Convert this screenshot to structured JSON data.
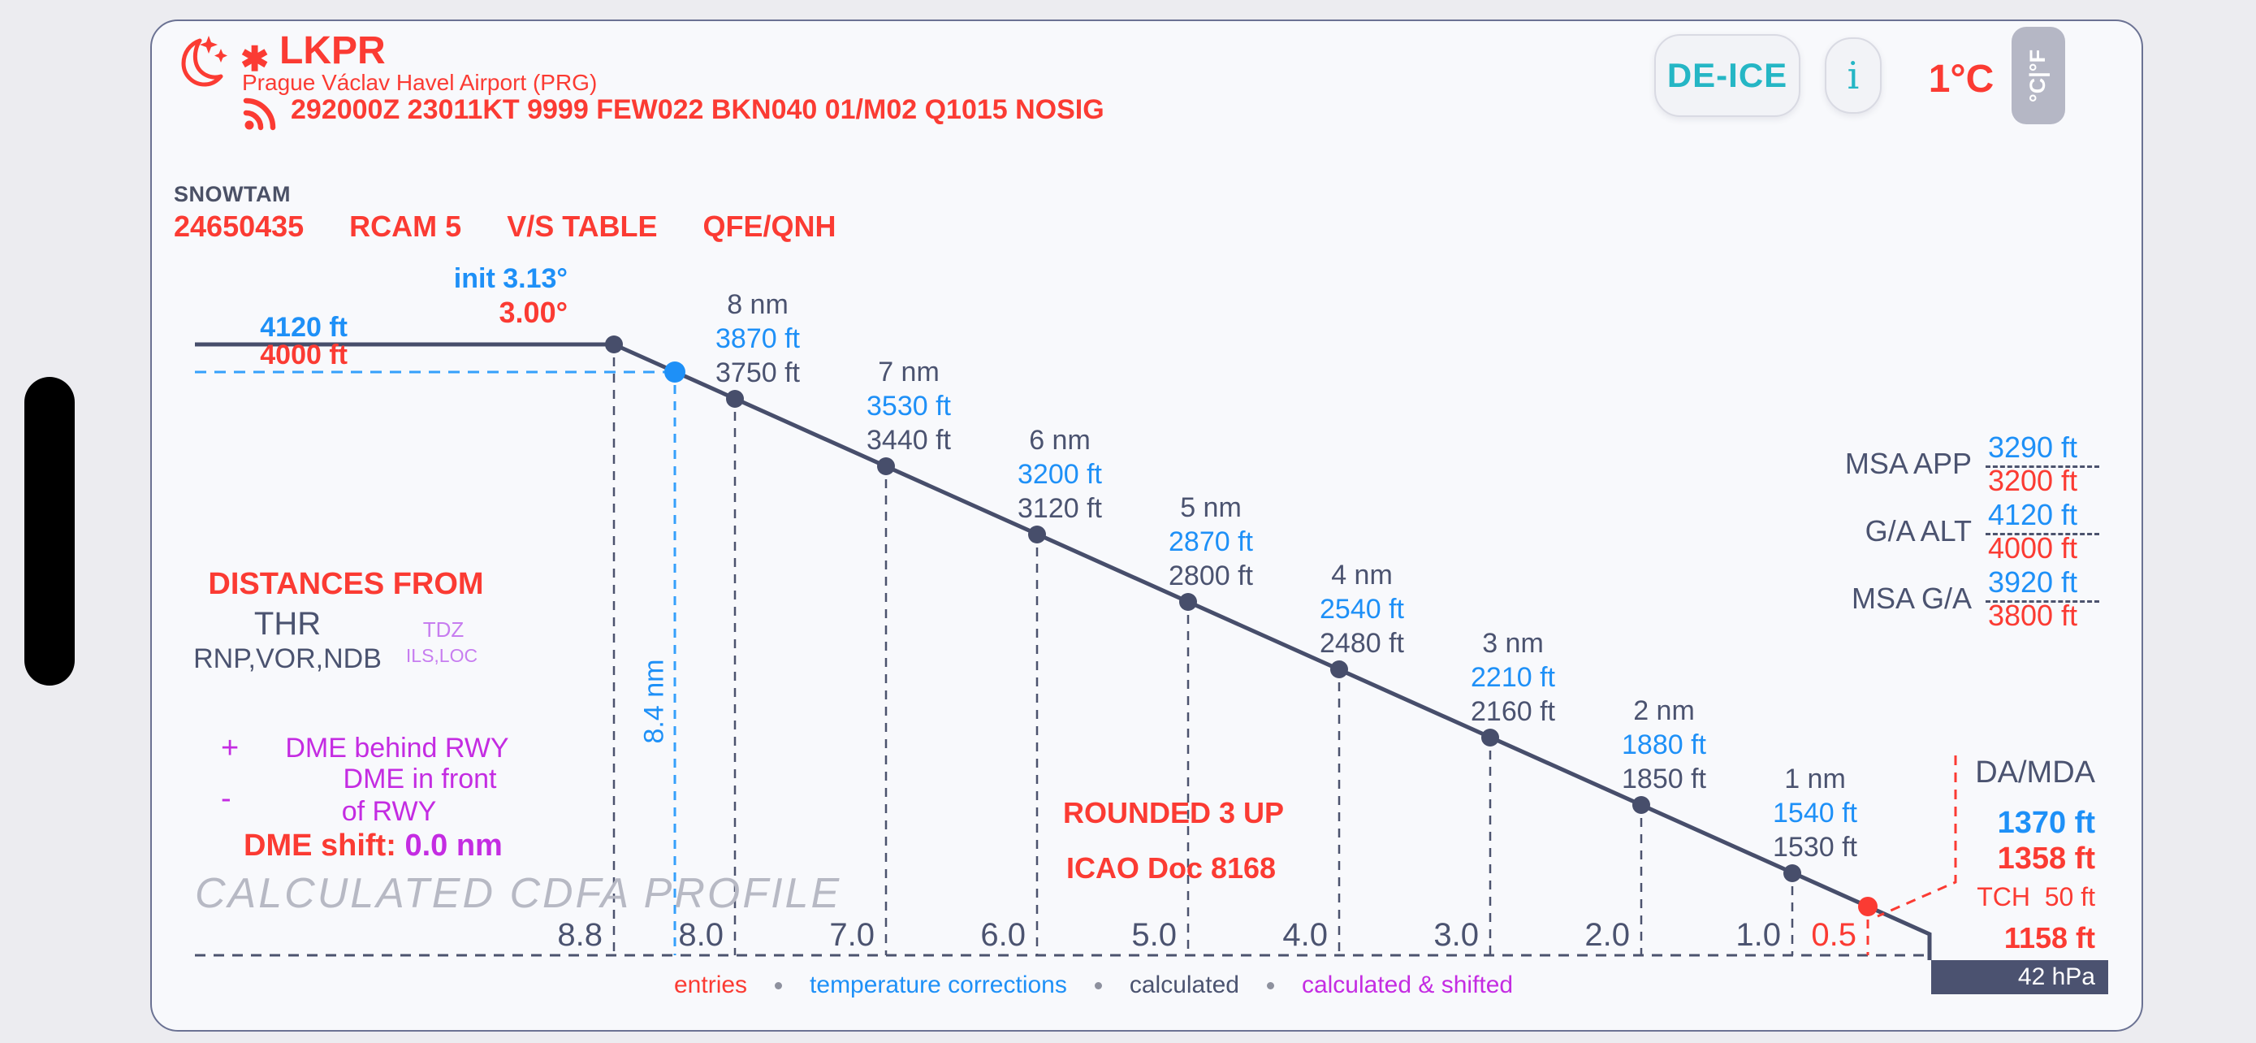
{
  "header": {
    "icao": "LKPR",
    "snowflake_icon": "✱",
    "airport_name": "Prague Václav Havel Airport (PRG)",
    "metar": "292000Z 23011KT 9999 FEW022 BKN040 01/M02 Q1015 NOSIG",
    "deice_button": "DE-ICE",
    "info_button": "i",
    "temperature": "1°C",
    "unit_toggle": "°C|°F"
  },
  "snowtam": {
    "label": "SNOWTAM",
    "number": "24650435",
    "rcam": "RCAM 5",
    "vs_table": "V/S TABLE",
    "qfe_qnh": "QFE/QNH"
  },
  "glide": {
    "init_corrected": "init 3.13°",
    "published": "3.00°",
    "level_alt_corrected": "4120 ft",
    "level_alt_published": "4000 ft",
    "faf_distance": "8.4 nm"
  },
  "distances_from": {
    "title": "DISTANCES FROM",
    "thr_label": "THR",
    "thr_navaids": "RNP,VOR,NDB",
    "tdz_label": "TDZ",
    "tdz_navaids": "ILS,LOC",
    "plus_sign": "+",
    "plus_text": "DME behind RWY",
    "minus_sign": "-",
    "minus_text_line1": "DME in front",
    "minus_text_line2": "of RWY",
    "dme_shift_label": "DME shift: ",
    "dme_shift_value": "0.0 nm"
  },
  "notes": {
    "rounding": "ROUNDED 3 UP",
    "reference": "ICAO Doc 8168"
  },
  "minimums": {
    "da_mda_label": "DA/MDA",
    "da_corrected": "1370 ft",
    "da_published": "1358 ft",
    "tch": "TCH  50 ft",
    "thr_elevation": "1158 ft",
    "qfe_offset": "42 hPa"
  },
  "msa": {
    "rows": [
      {
        "label": "MSA APP",
        "corrected": "3290 ft",
        "published": "3200 ft"
      },
      {
        "label": "G/A ALT",
        "corrected": "4120 ft",
        "published": "4000 ft"
      },
      {
        "label": "MSA G/A",
        "corrected": "3920 ft",
        "published": "3800 ft"
      }
    ]
  },
  "watermark": "CALCULATED CDFA PROFILE",
  "chart_data": {
    "type": "line",
    "title": "CALCULATED CDFA PROFILE",
    "x_axis": {
      "unit": "nm before THR",
      "tick_labels": [
        "8.8",
        "8.0",
        "7.0",
        "6.0",
        "5.0",
        "4.0",
        "3.0",
        "2.0",
        "1.0",
        "0.5"
      ],
      "grid": "dashed-vertical"
    },
    "glidepath_deg": {
      "corrected_init": 3.13,
      "published": 3.0
    },
    "level_segment_ft": {
      "corrected": 4120,
      "published": 4000
    },
    "points": [
      {
        "nm": 8.8,
        "role": "descent-start",
        "axis_label": "8.8"
      },
      {
        "nm": 8.4,
        "role": "faf-corrected",
        "axis_label": null
      },
      {
        "nm": 8.0,
        "role": "fix",
        "axis_label": "8.0",
        "label": "8 nm",
        "corrected_ft": 3870,
        "calculated_ft": 3750
      },
      {
        "nm": 7.0,
        "role": "fix",
        "axis_label": "7.0",
        "label": "7 nm",
        "corrected_ft": 3530,
        "calculated_ft": 3440
      },
      {
        "nm": 6.0,
        "role": "fix",
        "axis_label": "6.0",
        "label": "6 nm",
        "corrected_ft": 3200,
        "calculated_ft": 3120
      },
      {
        "nm": 5.0,
        "role": "fix",
        "axis_label": "5.0",
        "label": "5 nm",
        "corrected_ft": 2870,
        "calculated_ft": 2800
      },
      {
        "nm": 4.0,
        "role": "fix",
        "axis_label": "4.0",
        "label": "4 nm",
        "corrected_ft": 2540,
        "calculated_ft": 2480
      },
      {
        "nm": 3.0,
        "role": "fix",
        "axis_label": "3.0",
        "label": "3 nm",
        "corrected_ft": 2210,
        "calculated_ft": 2160
      },
      {
        "nm": 2.0,
        "role": "fix",
        "axis_label": "2.0",
        "label": "2 nm",
        "corrected_ft": 1880,
        "calculated_ft": 1850
      },
      {
        "nm": 1.0,
        "role": "fix",
        "axis_label": "1.0",
        "label": "1 nm",
        "corrected_ft": 1540,
        "calculated_ft": 1530
      },
      {
        "nm": 0.5,
        "role": "mda",
        "axis_label": "0.5"
      }
    ],
    "da_mda_ft": {
      "corrected": 1370,
      "published": 1358
    },
    "tch_ft": 50,
    "thr_elevation_ft": 1158,
    "qfe_offset_hpa": 42,
    "legend": [
      {
        "label": "entries",
        "color": "#fb3b33"
      },
      {
        "label": "temperature corrections",
        "color": "#1e90f7"
      },
      {
        "label": "calculated",
        "color": "#4b5370"
      },
      {
        "label": "calculated & shifted",
        "color": "#c42ce2"
      }
    ],
    "legend_position": "bottom"
  }
}
